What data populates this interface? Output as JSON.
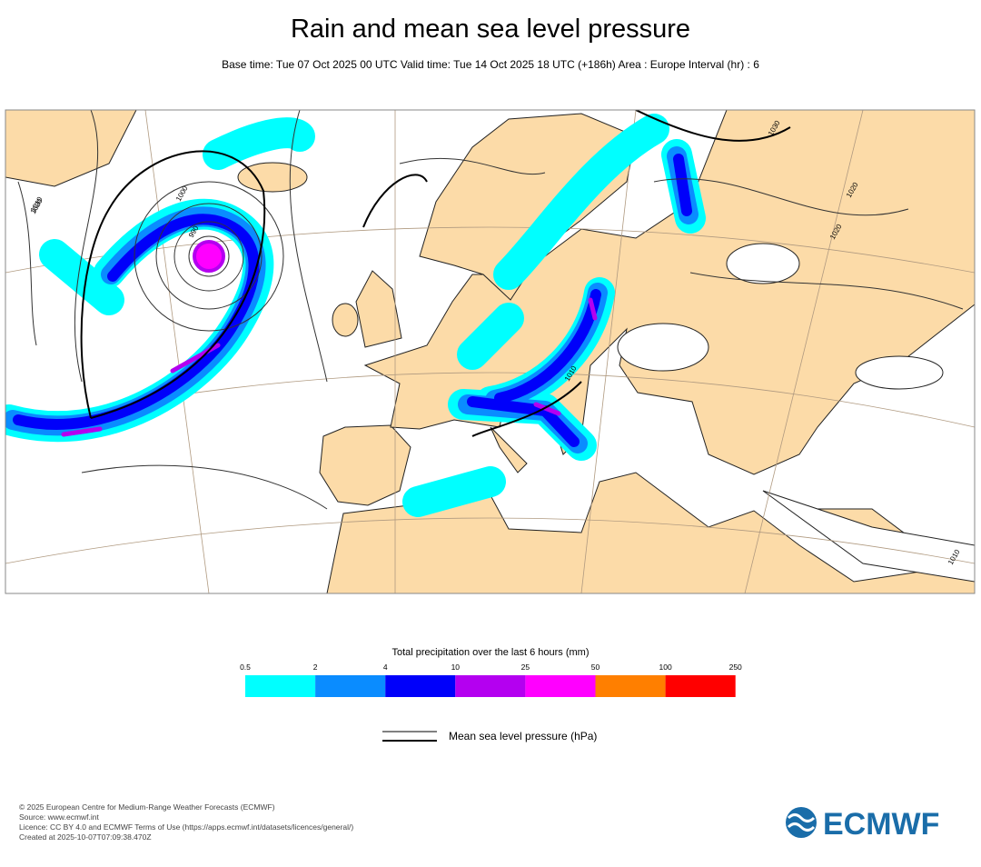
{
  "header": {
    "title": "Rain and mean sea level pressure",
    "subtitle": "Base time: Tue 07 Oct 2025 00 UTC Valid time: Tue 14 Oct 2025 18 UTC (+186h) Area : Europe Interval (hr) : 6"
  },
  "map": {
    "isobar_labels": [
      "990",
      "1000",
      "1010",
      "1020",
      "1010",
      "1020",
      "1030",
      "1020",
      "1010"
    ]
  },
  "legend": {
    "title": "Total precipitation over the last 6 hours (mm)",
    "bounds": [
      "0.5",
      "2",
      "4",
      "10",
      "25",
      "50",
      "100",
      "250"
    ],
    "colors": [
      "#00ffff",
      "#0a8cff",
      "#0000fa",
      "#b400f0",
      "#ff00ff",
      "#ff7f00",
      "#ff0000"
    ],
    "pressure_label": "Mean sea level pressure (hPa)"
  },
  "footer": {
    "lines": [
      "© 2025 European Centre for Medium-Range Weather Forecasts (ECMWF)",
      "Source: www.ecmwf.int",
      "Licence: CC BY 4.0 and ECMWF Terms of Use (https://apps.ecmwf.int/datasets/licences/general/)",
      "Created at 2025-10-07T07:09:38.470Z"
    ]
  },
  "logo": {
    "text": "ECMWF"
  }
}
